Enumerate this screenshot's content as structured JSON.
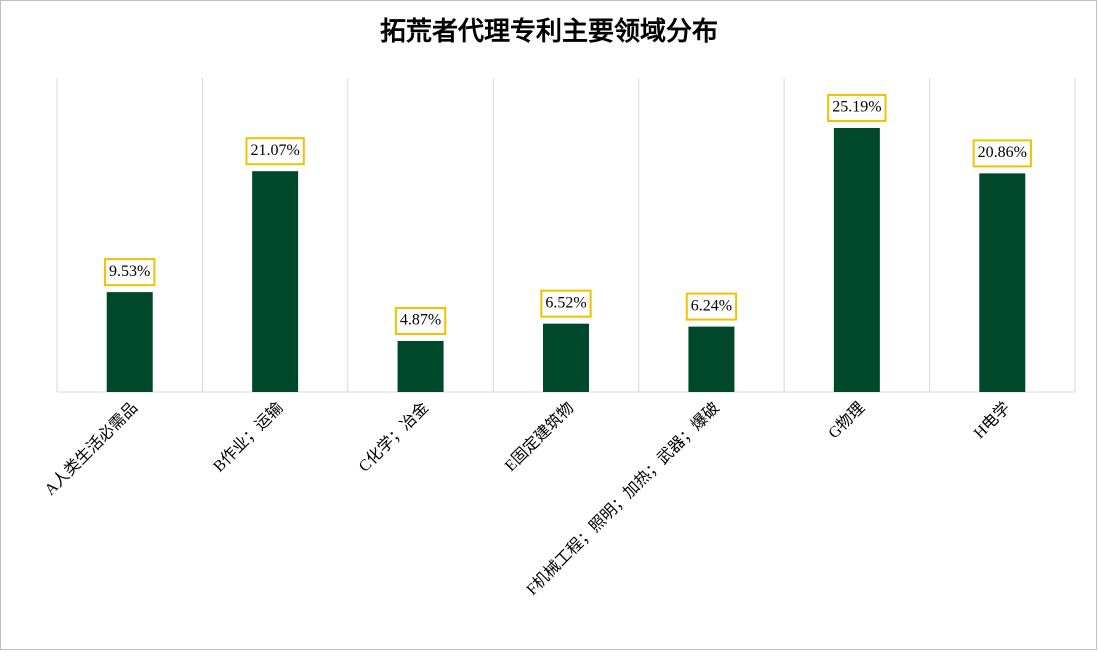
{
  "chart_data": {
    "type": "bar",
    "title": "拓荒者代理专利主要领域分布",
    "categories": [
      "A人类生活必需品",
      "B作业；运输",
      "C化学；冶金",
      "E固定建筑物",
      "F机械工程；照明；加热；武器；爆破",
      "G物理",
      "H电学"
    ],
    "values": [
      9.53,
      21.07,
      4.87,
      6.52,
      6.24,
      25.19,
      20.86
    ],
    "value_labels": [
      "9.53%",
      "21.07%",
      "4.87%",
      "6.52%",
      "6.24%",
      "25.19%",
      "20.86%"
    ],
    "color": "#00482b",
    "grid": true
  }
}
